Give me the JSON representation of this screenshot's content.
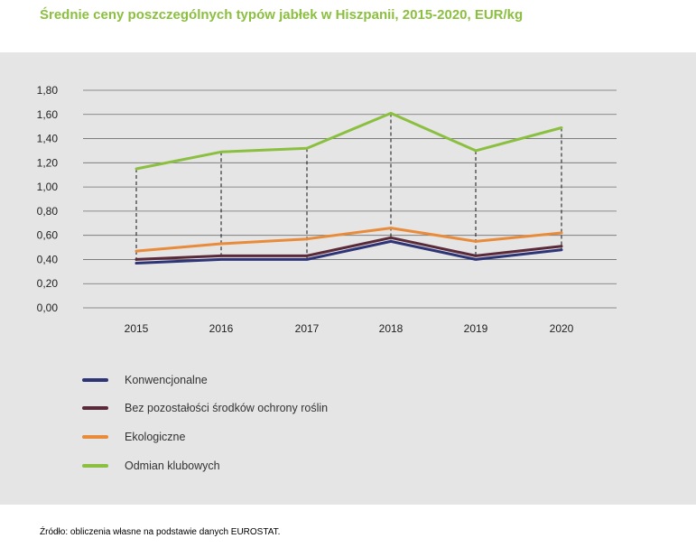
{
  "title": "Średnie ceny poszczególnych typów jabłek w Hiszpanii, 2015-2020, EUR/kg",
  "source": "Źródło: obliczenia własne na podstawie danych EUROSTAT.",
  "chart_data": {
    "type": "line",
    "categories": [
      "2015",
      "2016",
      "2017",
      "2018",
      "2019",
      "2020"
    ],
    "ylim": [
      0,
      1.8
    ],
    "yticks": [
      "0,00",
      "0,20",
      "0,40",
      "0,60",
      "0,80",
      "1,00",
      "1,20",
      "1,40",
      "1,60",
      "1,80"
    ],
    "grid": true,
    "legend_position": "bottom-left",
    "series": [
      {
        "name": "Konwencjonalne",
        "color": "#2e3577",
        "values": [
          0.37,
          0.4,
          0.4,
          0.55,
          0.4,
          0.48
        ]
      },
      {
        "name": "Bez pozostałości środków ochrony roślin",
        "color": "#5a2a3a",
        "values": [
          0.4,
          0.43,
          0.43,
          0.58,
          0.43,
          0.51
        ]
      },
      {
        "name": "Ekologiczne",
        "color": "#e88b3a",
        "values": [
          0.47,
          0.53,
          0.57,
          0.66,
          0.55,
          0.62
        ]
      },
      {
        "name": "Odmian klubowych",
        "color": "#8bbf3f",
        "values": [
          1.15,
          1.29,
          1.32,
          1.61,
          1.3,
          1.49
        ]
      }
    ]
  }
}
